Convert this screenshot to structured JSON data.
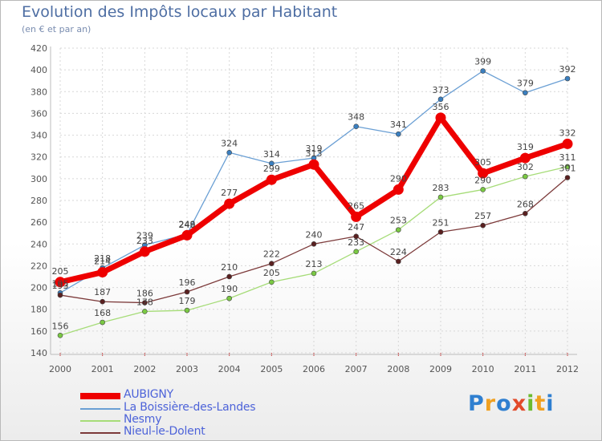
{
  "title": "Evolution des Impôts locaux par Habitant",
  "subtitle": "(en € et par an)",
  "logo": {
    "text": "Proxiti",
    "letters": [
      "P",
      "r",
      "o",
      "x",
      "i",
      "t",
      "i"
    ],
    "colors": [
      "#2f7fd0",
      "#f0a020",
      "#2f7fd0",
      "#e24a2a",
      "#6dbb2f",
      "#f0a020",
      "#2f7fd0"
    ]
  },
  "chart_data": {
    "type": "line",
    "title": "Evolution des Impôts locaux par Habitant",
    "subtitle": "(en € et par an)",
    "xlabel": "",
    "ylabel": "",
    "categories": [
      "2000",
      "2001",
      "2002",
      "2003",
      "2004",
      "2005",
      "2006",
      "2007",
      "2008",
      "2009",
      "2010",
      "2011",
      "2012"
    ],
    "ylim": [
      140,
      420
    ],
    "yticks": [
      140,
      160,
      180,
      200,
      220,
      240,
      260,
      280,
      300,
      320,
      340,
      360,
      380,
      400,
      420
    ],
    "grid": true,
    "legend_position": "bottom-left",
    "series": [
      {
        "name": "La Boissière-des-Landes",
        "color": "#6a9fd4",
        "marker": "#3a7fc0",
        "emphasis": false,
        "values": [
          195,
          218,
          239,
          249,
          324,
          314,
          319,
          348,
          341,
          373,
          399,
          379,
          392
        ]
      },
      {
        "name": "Nesmy",
        "color": "#a6dc78",
        "marker": "#7ac943",
        "emphasis": false,
        "values": [
          156,
          168,
          178,
          179,
          190,
          205,
          213,
          233,
          253,
          283,
          290,
          302,
          311
        ]
      },
      {
        "name": "Nieul-le-Dolent",
        "color": "#7c3a3a",
        "marker": "#5a2020",
        "emphasis": false,
        "values": [
          193,
          187,
          186,
          196,
          210,
          222,
          240,
          247,
          224,
          251,
          257,
          268,
          301
        ]
      },
      {
        "name": "AUBIGNY",
        "color": "#ee0000",
        "marker": "#ee0000",
        "emphasis": true,
        "values": [
          205,
          214,
          233,
          248,
          277,
          299,
          313,
          265,
          290,
          356,
          305,
          319,
          332
        ]
      }
    ],
    "legend_order": [
      "AUBIGNY",
      "La Boissière-des-Landes",
      "Nesmy",
      "Nieul-le-Dolent"
    ]
  }
}
